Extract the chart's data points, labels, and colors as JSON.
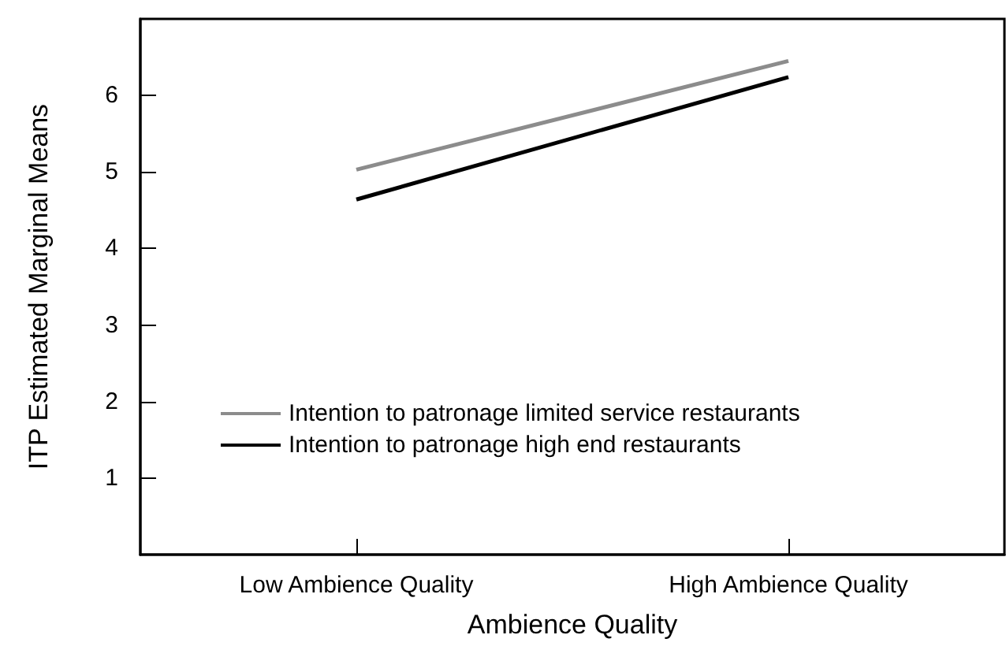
{
  "chart_data": {
    "type": "line",
    "xlabel": "Ambience Quality",
    "ylabel": "ITP Estimated Marginal Means",
    "categories": [
      "Low Ambience Quality",
      "High Ambience Quality"
    ],
    "series": [
      {
        "name": "Intention to patronage limited service restaurants",
        "color": "#8c8c8c",
        "values": [
          5.03,
          6.45
        ]
      },
      {
        "name": "Intention to patronage high end restaurants",
        "color": "#000000",
        "values": [
          4.64,
          6.24
        ]
      }
    ],
    "ylim": [
      0,
      7
    ],
    "yticks": [
      1,
      2,
      3,
      4,
      5,
      6
    ],
    "grid": false,
    "legend": "bottom left",
    "marker": "none",
    "line_style": "solid"
  }
}
